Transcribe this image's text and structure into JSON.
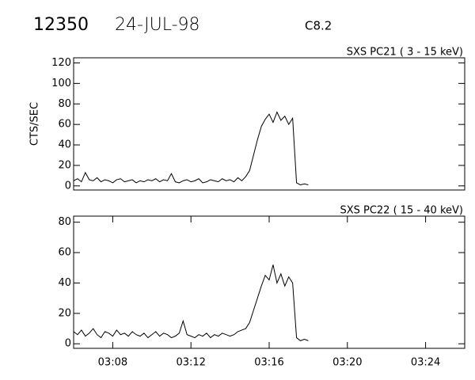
{
  "header": {
    "id": "12350",
    "date": "24-JUL-98",
    "class": "C8.2"
  },
  "chart_data": [
    {
      "type": "line",
      "title": "SXS PC21  (  3 - 15 keV)",
      "y_label": "CTS/SEC",
      "color": "#000000",
      "x": [
        6,
        6.2,
        6.4,
        6.6,
        6.8,
        7,
        7.2,
        7.4,
        7.6,
        7.8,
        8,
        8.2,
        8.4,
        8.6,
        8.8,
        9,
        9.2,
        9.4,
        9.6,
        9.8,
        10,
        10.2,
        10.4,
        10.6,
        10.8,
        11,
        11.2,
        11.4,
        11.6,
        11.8,
        12,
        12.2,
        12.4,
        12.6,
        12.8,
        13,
        13.2,
        13.4,
        13.6,
        13.8,
        14,
        14.2,
        14.4,
        14.6,
        14.8,
        15,
        15.2,
        15.4,
        15.6,
        15.8,
        16,
        16.2,
        16.4,
        16.6,
        16.8,
        17,
        17.2,
        17.4,
        17.6,
        17.8,
        18
      ],
      "values": [
        5,
        7,
        4,
        13,
        6,
        5,
        8,
        4,
        6,
        5,
        3,
        6,
        7,
        4,
        5,
        6,
        3,
        5,
        4,
        6,
        5,
        7,
        4,
        6,
        5,
        12,
        4,
        3,
        5,
        6,
        4,
        5,
        7,
        3,
        4,
        6,
        5,
        4,
        7,
        5,
        6,
        4,
        8,
        5,
        9,
        15,
        30,
        45,
        58,
        65,
        70,
        62,
        72,
        64,
        68,
        60,
        66,
        3,
        1,
        2,
        1
      ],
      "xlim": [
        6,
        26
      ],
      "ylim": [
        -4,
        125
      ],
      "yticks": [
        0,
        20,
        40,
        60,
        80,
        100,
        120
      ]
    },
    {
      "type": "line",
      "title": "SXS PC22  ( 15 - 40 keV)",
      "color": "#000000",
      "x": [
        6,
        6.2,
        6.4,
        6.6,
        6.8,
        7,
        7.2,
        7.4,
        7.6,
        7.8,
        8,
        8.2,
        8.4,
        8.6,
        8.8,
        9,
        9.2,
        9.4,
        9.6,
        9.8,
        10,
        10.2,
        10.4,
        10.6,
        10.8,
        11,
        11.2,
        11.4,
        11.6,
        11.8,
        12,
        12.2,
        12.4,
        12.6,
        12.8,
        13,
        13.2,
        13.4,
        13.6,
        13.8,
        14,
        14.2,
        14.4,
        14.6,
        14.8,
        15,
        15.2,
        15.4,
        15.6,
        15.8,
        16,
        16.2,
        16.4,
        16.6,
        16.8,
        17,
        17.2,
        17.4,
        17.6,
        17.8,
        18
      ],
      "values": [
        8,
        6,
        9,
        5,
        7,
        10,
        6,
        4,
        8,
        7,
        5,
        9,
        6,
        7,
        5,
        8,
        6,
        5,
        7,
        4,
        6,
        8,
        5,
        7,
        6,
        4,
        5,
        7,
        15,
        6,
        5,
        4,
        6,
        5,
        7,
        4,
        6,
        5,
        7,
        6,
        5,
        6,
        8,
        9,
        10,
        14,
        22,
        30,
        38,
        45,
        42,
        52,
        40,
        46,
        38,
        44,
        40,
        4,
        2,
        3,
        2
      ],
      "xlim": [
        6,
        26
      ],
      "ylim": [
        -3,
        84
      ],
      "yticks": [
        0,
        20,
        40,
        60,
        80
      ],
      "xticks": [
        {
          "value": 8,
          "label": "03:08"
        },
        {
          "value": 12,
          "label": "03:12"
        },
        {
          "value": 16,
          "label": "03:16"
        },
        {
          "value": 20,
          "label": "03:20"
        },
        {
          "value": 24,
          "label": "03:24"
        }
      ]
    }
  ]
}
